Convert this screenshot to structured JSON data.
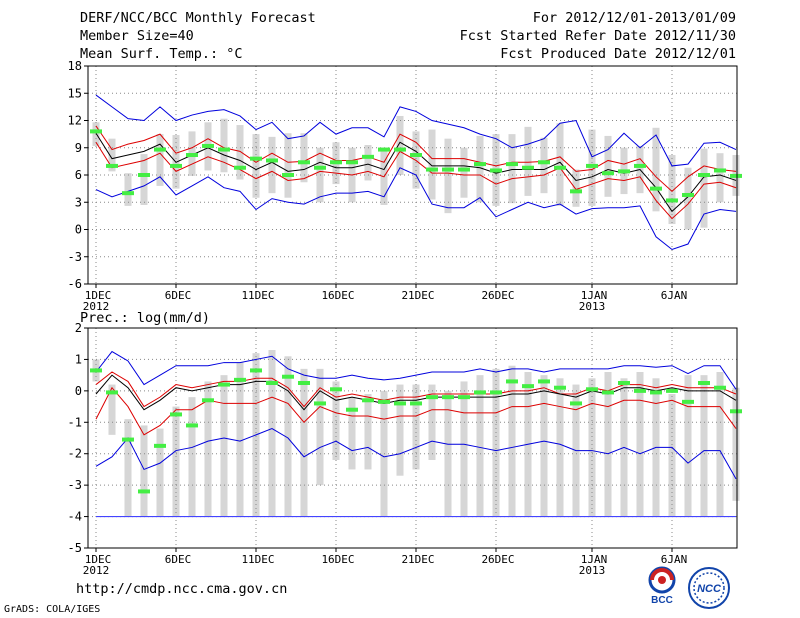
{
  "header": {
    "title": "DERF/NCC/BCC Monthly Forecast",
    "member_size": "Member Size=40",
    "variable": "Mean Surf. Temp.: °C",
    "period": "For 2012/12/01-2013/01/09",
    "started": "Fcst Started Refer Date 2012/11/30",
    "produced": "Fcst Produced Date 2012/12/01"
  },
  "footer": {
    "url": "http://cmdp.ncc.cma.gov.cn",
    "grads": "GrADS: COLA/IGES",
    "logo_bcc": "BCC",
    "logo_ncc": "NCC"
  },
  "colors": {
    "spread": "#0000dd",
    "quartile": "#dd0000",
    "mean": "#000000",
    "box": "#d6d6d6",
    "obs": "#44ee44",
    "grid": "#888888",
    "floor": "#4444ff"
  },
  "chart_data": [
    {
      "type": "line",
      "title": "Mean Surf. Temp.: °C",
      "days": 40,
      "x_ticks": [
        {
          "day": 0,
          "label": "1DEC",
          "sub": "2012"
        },
        {
          "day": 5,
          "label": "6DEC",
          "sub": ""
        },
        {
          "day": 10,
          "label": "11DEC",
          "sub": ""
        },
        {
          "day": 15,
          "label": "16DEC",
          "sub": ""
        },
        {
          "day": 20,
          "label": "21DEC",
          "sub": ""
        },
        {
          "day": 25,
          "label": "26DEC",
          "sub": ""
        },
        {
          "day": 31,
          "label": "1JAN",
          "sub": "2013"
        },
        {
          "day": 36,
          "label": "6JAN",
          "sub": ""
        }
      ],
      "ylim": [
        -6,
        18
      ],
      "yticks": [
        -6,
        -3,
        0,
        3,
        6,
        9,
        12,
        15,
        18
      ],
      "series": [
        {
          "name": "max",
          "values": [
            14.8,
            13.5,
            12.2,
            12,
            13.5,
            12,
            12.6,
            13,
            13.2,
            12.5,
            11,
            11.8,
            10,
            10.3,
            11.8,
            10.5,
            11.2,
            11.2,
            10.2,
            13.5,
            13,
            12,
            11.6,
            11.2,
            10.5,
            10,
            9,
            9.4,
            10,
            11.7,
            12,
            8,
            8.8,
            10.6,
            9,
            10.4,
            7,
            7.2,
            9.5,
            9.6,
            8.8
          ]
        },
        {
          "name": "q_upper",
          "values": [
            11.4,
            8.8,
            9.4,
            9.8,
            10.5,
            8.4,
            9,
            10,
            9,
            8.6,
            7.4,
            8.4,
            7.4,
            7.5,
            8.4,
            7.6,
            7.6,
            8,
            7.4,
            10.5,
            9.6,
            7.8,
            7.8,
            7.8,
            7.4,
            7,
            7.4,
            7.4,
            7.5,
            8,
            6.4,
            6.6,
            7.6,
            7.2,
            7.8,
            5.8,
            4.2,
            5.8,
            7,
            6.6,
            6.4
          ]
        },
        {
          "name": "mean",
          "values": [
            10.6,
            7.8,
            8.2,
            8.6,
            9.4,
            7.4,
            8.2,
            9,
            8.2,
            7.6,
            6.6,
            7.4,
            6.4,
            6.6,
            7.4,
            6.8,
            6.8,
            7.2,
            6.6,
            9.6,
            8.6,
            7,
            7,
            7,
            6.8,
            6.2,
            6.6,
            6.6,
            6.6,
            7.4,
            5.4,
            5.8,
            6.6,
            6.2,
            6.6,
            4.6,
            2,
            3.6,
            5.8,
            6,
            5.4
          ]
        },
        {
          "name": "q_lower",
          "values": [
            9.6,
            6.8,
            7.2,
            7.6,
            8.4,
            6.4,
            7.2,
            8,
            7.4,
            6.6,
            5.6,
            6.4,
            5.4,
            5.6,
            6.4,
            6.2,
            6,
            6.4,
            5.8,
            8.6,
            7.6,
            6.2,
            6.2,
            6,
            6,
            5,
            5.6,
            5.8,
            6,
            6.8,
            4.4,
            5,
            5.6,
            5.4,
            5.8,
            3.2,
            1.2,
            2.8,
            5,
            5.2,
            4.6
          ]
        },
        {
          "name": "min",
          "values": [
            4.4,
            3.6,
            4.2,
            4.8,
            5.8,
            3.8,
            4.8,
            5.8,
            4.6,
            4.2,
            2.2,
            3.4,
            3,
            2.8,
            3.6,
            4,
            4,
            4.2,
            3.6,
            6.8,
            6,
            2.8,
            2.4,
            2.4,
            3.5,
            1.4,
            2.2,
            3,
            2.4,
            2.8,
            1.7,
            2.3,
            2.4,
            2.4,
            2.6,
            -0.8,
            -2.2,
            -1.6,
            1.7,
            2.2,
            2
          ]
        },
        {
          "name": "observed",
          "values": [
            10.8,
            7,
            4,
            6,
            8.8,
            7,
            8.2,
            9.2,
            8.8,
            6.8,
            7.8,
            7.6,
            6,
            7.4,
            6.8,
            7.4,
            7.4,
            8,
            8.8,
            8.8,
            8.2,
            6.6,
            6.6,
            6.6,
            7.2,
            6.5,
            7.2,
            6.8,
            7.4,
            6.8,
            4.2,
            7,
            6.2,
            6.4,
            7,
            4.5,
            3.2,
            3.8,
            6,
            6.5,
            5.9
          ]
        }
      ],
      "box_ranges": [
        [
          9.2,
          11.8
        ],
        [
          6.4,
          10
        ],
        [
          2.6,
          6.2
        ],
        [
          2.7,
          8.3
        ],
        [
          4.8,
          10.5
        ],
        [
          4.5,
          10.4
        ],
        [
          5.9,
          10.8
        ],
        [
          6.5,
          11.8
        ],
        [
          6.3,
          12.2
        ],
        [
          5.5,
          11.5
        ],
        [
          3.5,
          10.5
        ],
        [
          4,
          10.2
        ],
        [
          3.5,
          10.6
        ],
        [
          5.2,
          10.6
        ],
        [
          3,
          9
        ],
        [
          5,
          9.6
        ],
        [
          3,
          9
        ],
        [
          5.4,
          9.3
        ],
        [
          2.7,
          9
        ],
        [
          6,
          12.5
        ],
        [
          4.5,
          10.8
        ],
        [
          3.3,
          11
        ],
        [
          1.8,
          10
        ],
        [
          3.5,
          9
        ],
        [
          3,
          10.3
        ],
        [
          2.6,
          10.5
        ],
        [
          2.9,
          10.5
        ],
        [
          3.7,
          11.3
        ],
        [
          4,
          10.1
        ],
        [
          2.6,
          11.7
        ],
        [
          2.5,
          6.6
        ],
        [
          2.6,
          11
        ],
        [
          3.6,
          10.3
        ],
        [
          3.9,
          9
        ],
        [
          4,
          9.2
        ],
        [
          2,
          11.2
        ],
        [
          0.6,
          8.2
        ],
        [
          0,
          6.8
        ],
        [
          0.2,
          8.9
        ],
        [
          3,
          8.4
        ],
        [
          3.7,
          8.2
        ]
      ]
    },
    {
      "type": "line",
      "title": "Prec.: log(mm/d)",
      "days": 40,
      "x_ticks": [
        {
          "day": 0,
          "label": "1DEC",
          "sub": "2012"
        },
        {
          "day": 5,
          "label": "6DEC",
          "sub": ""
        },
        {
          "day": 10,
          "label": "11DEC",
          "sub": ""
        },
        {
          "day": 15,
          "label": "16DEC",
          "sub": ""
        },
        {
          "day": 20,
          "label": "21DEC",
          "sub": ""
        },
        {
          "day": 25,
          "label": "26DEC",
          "sub": ""
        },
        {
          "day": 31,
          "label": "1JAN",
          "sub": "2013"
        },
        {
          "day": 36,
          "label": "6JAN",
          "sub": ""
        }
      ],
      "ylim": [
        -5,
        2
      ],
      "yticks": [
        -5,
        -4,
        -3,
        -2,
        -1,
        0,
        1,
        2
      ],
      "floor": -4,
      "series": [
        {
          "name": "max",
          "values": [
            0.6,
            1.25,
            0.95,
            0.2,
            0.5,
            0.8,
            0.8,
            0.8,
            0.9,
            0.9,
            1,
            1.1,
            0.7,
            0.5,
            0.4,
            0.4,
            0.5,
            0.4,
            0.35,
            0.4,
            0.5,
            0.6,
            0.6,
            0.6,
            0.7,
            0.6,
            0.7,
            0.7,
            0.6,
            0.7,
            0.7,
            0.7,
            0.7,
            0.8,
            0.8,
            0.75,
            0.8,
            0.55,
            0.8,
            0.8,
            0.05
          ]
        },
        {
          "name": "q_upper",
          "values": [
            0.2,
            0.6,
            0.3,
            -0.5,
            -0.2,
            0.2,
            0.1,
            0.2,
            0.3,
            0.3,
            0.4,
            0.4,
            0.1,
            -0.5,
            0.1,
            -0.2,
            -0.1,
            -0.2,
            -0.3,
            -0.2,
            -0.2,
            -0.1,
            -0.1,
            -0.1,
            -0.1,
            -0.1,
            0,
            0,
            0.1,
            -0.1,
            -0.1,
            0.1,
            0,
            0.2,
            0.2,
            0.1,
            0.2,
            0.1,
            0.1,
            0.1,
            -0.1
          ]
        },
        {
          "name": "mean",
          "values": [
            -0.1,
            0.5,
            0.1,
            -0.6,
            -0.3,
            0.1,
            0,
            0.1,
            0.2,
            0.2,
            0.3,
            0.3,
            0,
            -0.6,
            0,
            -0.3,
            -0.2,
            -0.3,
            -0.4,
            -0.3,
            -0.3,
            -0.2,
            -0.2,
            -0.2,
            -0.2,
            -0.2,
            -0.1,
            -0.1,
            0,
            -0.1,
            -0.2,
            0,
            -0.1,
            0.1,
            0.1,
            0,
            0.1,
            0,
            0,
            0,
            -0.3
          ]
        },
        {
          "name": "q_lower",
          "values": [
            -0.9,
            0.1,
            -0.5,
            -1.4,
            -1.1,
            -0.6,
            -0.6,
            -0.3,
            -0.4,
            -0.4,
            -0.4,
            -0.2,
            -0.4,
            -1,
            -0.5,
            -0.7,
            -0.8,
            -0.8,
            -0.9,
            -0.8,
            -0.8,
            -0.6,
            -0.6,
            -0.7,
            -0.7,
            -0.7,
            -0.5,
            -0.5,
            -0.4,
            -0.5,
            -0.6,
            -0.4,
            -0.5,
            -0.3,
            -0.3,
            -0.4,
            -0.3,
            -0.5,
            -0.5,
            -0.5,
            -1.2
          ]
        },
        {
          "name": "min",
          "values": [
            -2.4,
            -2.1,
            -1.5,
            -2.5,
            -2.3,
            -1.9,
            -1.8,
            -1.6,
            -1.5,
            -1.6,
            -1.4,
            -1.2,
            -1.5,
            -2.1,
            -1.8,
            -1.6,
            -1.9,
            -1.8,
            -2.1,
            -2,
            -1.8,
            -1.6,
            -1.7,
            -1.7,
            -1.8,
            -1.9,
            -1.8,
            -1.7,
            -1.6,
            -1.7,
            -1.9,
            -1.9,
            -2,
            -1.8,
            -2,
            -1.8,
            -1.8,
            -2.3,
            -1.9,
            -1.9,
            -2.8
          ]
        },
        {
          "name": "observed",
          "values": [
            0.65,
            -0.05,
            -1.55,
            -3.2,
            -1.75,
            -0.75,
            -1.1,
            -0.3,
            0.2,
            0.35,
            0.65,
            0.25,
            0.45,
            0.25,
            -0.4,
            0.05,
            -0.6,
            -0.3,
            -0.35,
            -0.4,
            -0.4,
            -0.2,
            -0.2,
            -0.2,
            -0.05,
            -0.05,
            0.3,
            0.15,
            0.3,
            0.1,
            -0.4,
            0.05,
            -0.05,
            0.25,
            0,
            -0.05,
            0,
            -0.35,
            0.25,
            0.1,
            -0.65
          ]
        }
      ],
      "box_ranges": [
        [
          0.3,
          1
        ],
        [
          -1.4,
          0.2
        ],
        [
          -4,
          -0.9
        ],
        [
          -4,
          -1.1
        ],
        [
          -4,
          -1.2
        ],
        [
          -4,
          -0.5
        ],
        [
          -4,
          -0.2
        ],
        [
          -4,
          0.3
        ],
        [
          -4,
          0.5
        ],
        [
          -4,
          0.9
        ],
        [
          -4,
          1.2
        ],
        [
          -4,
          1.3
        ],
        [
          -4,
          1.1
        ],
        [
          -4,
          0.7
        ],
        [
          -3,
          0.7
        ],
        [
          -2.2,
          0.3
        ],
        [
          -2.5,
          -0.2
        ],
        [
          -2.5,
          -0.1
        ],
        [
          -4,
          0
        ],
        [
          -2.7,
          0.2
        ],
        [
          -2.5,
          0.2
        ],
        [
          -2.2,
          0.2
        ],
        [
          -4,
          0
        ],
        [
          -4,
          0.3
        ],
        [
          -4,
          0.5
        ],
        [
          -4,
          0.7
        ],
        [
          -4,
          0.8
        ],
        [
          -4,
          0.6
        ],
        [
          -4,
          0.5
        ],
        [
          -4,
          0.4
        ],
        [
          -4,
          0.2
        ],
        [
          -4,
          0.4
        ],
        [
          -4,
          0.6
        ],
        [
          -4,
          0.4
        ],
        [
          -4,
          0.6
        ],
        [
          -4,
          0.4
        ],
        [
          -4,
          -0.1
        ],
        [
          -4,
          0.5
        ],
        [
          -4,
          0.5
        ],
        [
          -4,
          0.6
        ],
        [
          -3.5,
          0.1
        ]
      ]
    }
  ]
}
